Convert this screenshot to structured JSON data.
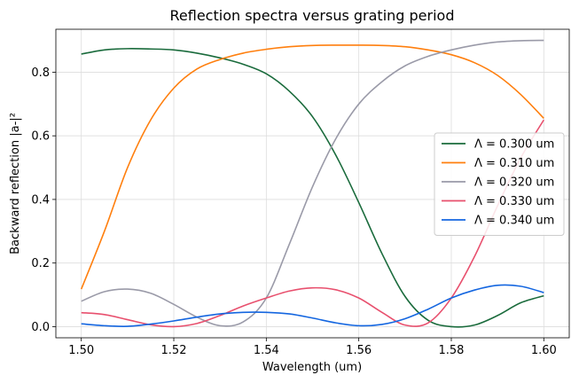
{
  "chart_data": {
    "type": "line",
    "title": "Reflection spectra versus grating period",
    "xlabel": "Wavelength (um)",
    "ylabel": "Backward reflection |a-|²",
    "xlim": [
      1.4945,
      1.6055
    ],
    "ylim": [
      -0.035,
      0.935
    ],
    "xticks": [
      1.5,
      1.52,
      1.54,
      1.56,
      1.58,
      1.6
    ],
    "xtick_labels": [
      "1.50",
      "1.52",
      "1.54",
      "1.56",
      "1.58",
      "1.60"
    ],
    "yticks": [
      0.0,
      0.2,
      0.4,
      0.6,
      0.8
    ],
    "ytick_labels": [
      "0.0",
      "0.2",
      "0.4",
      "0.6",
      "0.8"
    ],
    "grid": true,
    "legend_position": "center-right",
    "series": [
      {
        "name": "Λ = 0.300 um",
        "color": "#1a6b3c",
        "x": [
          1.5,
          1.505,
          1.51,
          1.515,
          1.52,
          1.525,
          1.53,
          1.535,
          1.54,
          1.545,
          1.55,
          1.555,
          1.56,
          1.565,
          1.57,
          1.575,
          1.58,
          1.585,
          1.59,
          1.595,
          1.6
        ],
        "y": [
          0.857,
          0.87,
          0.874,
          0.873,
          0.87,
          0.86,
          0.845,
          0.825,
          0.795,
          0.74,
          0.66,
          0.54,
          0.39,
          0.23,
          0.095,
          0.02,
          0.0,
          0.005,
          0.035,
          0.075,
          0.097
        ]
      },
      {
        "name": "Λ = 0.310 um",
        "color": "#ff7f0e",
        "x": [
          1.5,
          1.505,
          1.51,
          1.515,
          1.52,
          1.525,
          1.53,
          1.535,
          1.54,
          1.545,
          1.55,
          1.555,
          1.56,
          1.565,
          1.57,
          1.575,
          1.58,
          1.585,
          1.59,
          1.595,
          1.6
        ],
        "y": [
          0.118,
          0.3,
          0.5,
          0.65,
          0.75,
          0.81,
          0.84,
          0.86,
          0.872,
          0.88,
          0.884,
          0.885,
          0.885,
          0.884,
          0.88,
          0.87,
          0.855,
          0.83,
          0.79,
          0.73,
          0.655
        ]
      },
      {
        "name": "Λ = 0.320 um",
        "color": "#9a9aa8",
        "x": [
          1.5,
          1.505,
          1.51,
          1.515,
          1.52,
          1.525,
          1.53,
          1.535,
          1.54,
          1.545,
          1.55,
          1.555,
          1.56,
          1.565,
          1.57,
          1.575,
          1.58,
          1.585,
          1.59,
          1.595,
          1.6
        ],
        "y": [
          0.08,
          0.11,
          0.118,
          0.105,
          0.07,
          0.03,
          0.003,
          0.015,
          0.09,
          0.26,
          0.44,
          0.59,
          0.7,
          0.77,
          0.82,
          0.85,
          0.87,
          0.885,
          0.895,
          0.899,
          0.9
        ]
      },
      {
        "name": "Λ = 0.330 um",
        "color": "#e8506e",
        "x": [
          1.5,
          1.505,
          1.51,
          1.515,
          1.52,
          1.525,
          1.53,
          1.535,
          1.54,
          1.545,
          1.55,
          1.555,
          1.56,
          1.565,
          1.57,
          1.575,
          1.58,
          1.585,
          1.59,
          1.595,
          1.6
        ],
        "y": [
          0.044,
          0.038,
          0.022,
          0.006,
          0.0,
          0.01,
          0.035,
          0.065,
          0.09,
          0.112,
          0.122,
          0.116,
          0.09,
          0.045,
          0.005,
          0.012,
          0.09,
          0.22,
          0.38,
          0.53,
          0.65
        ]
      },
      {
        "name": "Λ = 0.340 um",
        "color": "#1466e0",
        "x": [
          1.5,
          1.505,
          1.51,
          1.515,
          1.52,
          1.525,
          1.53,
          1.535,
          1.54,
          1.545,
          1.55,
          1.555,
          1.56,
          1.565,
          1.57,
          1.575,
          1.58,
          1.585,
          1.59,
          1.595,
          1.6
        ],
        "y": [
          0.009,
          0.003,
          0.001,
          0.008,
          0.018,
          0.03,
          0.04,
          0.045,
          0.045,
          0.04,
          0.027,
          0.012,
          0.003,
          0.007,
          0.025,
          0.055,
          0.09,
          0.115,
          0.13,
          0.127,
          0.107
        ]
      }
    ]
  }
}
